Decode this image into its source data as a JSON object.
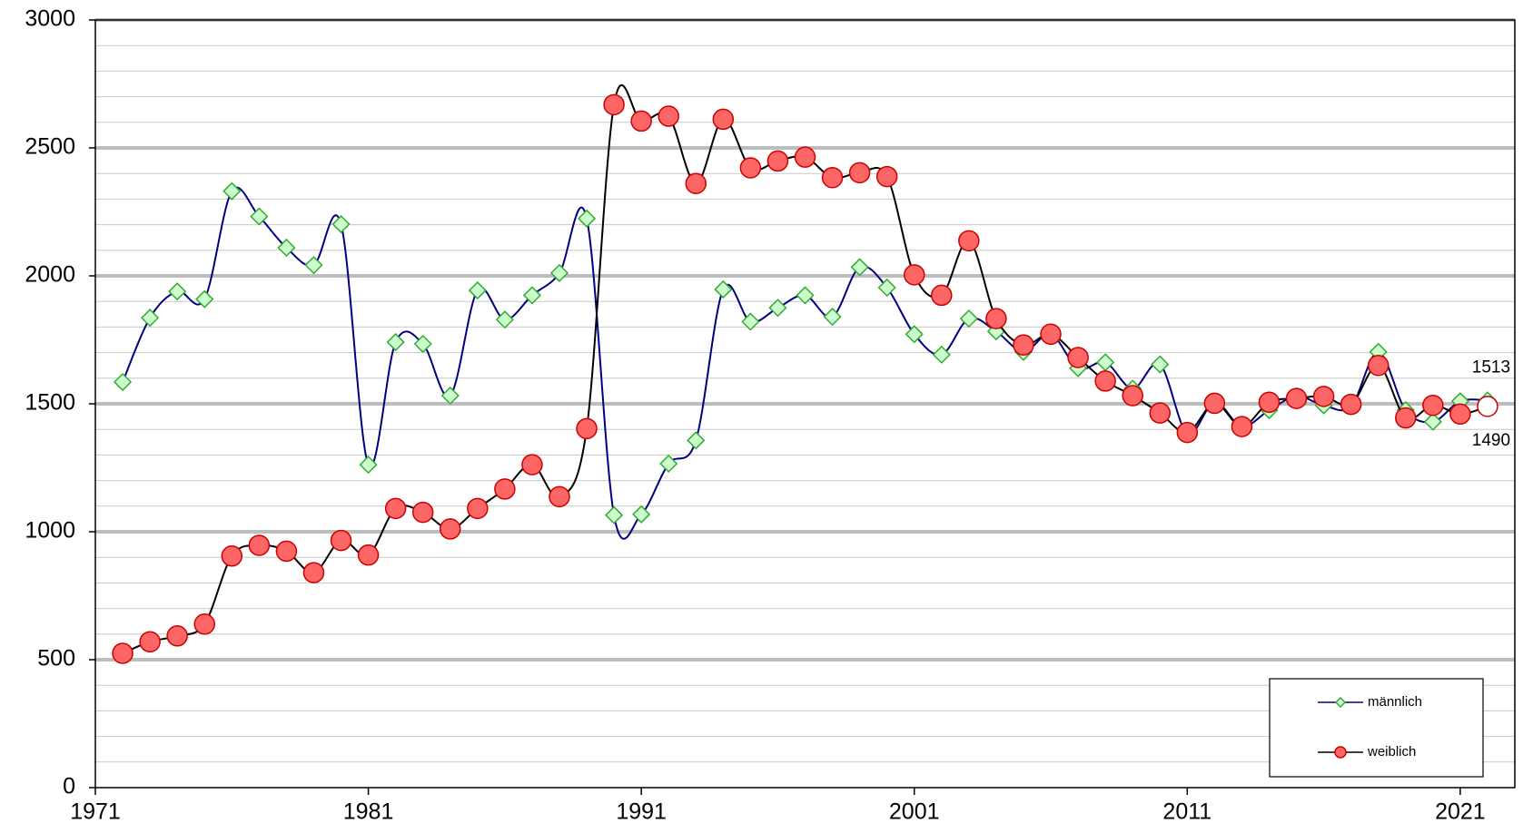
{
  "chart_data": {
    "type": "line",
    "x": [
      1972,
      1973,
      1974,
      1975,
      1976,
      1977,
      1978,
      1979,
      1980,
      1981,
      1982,
      1983,
      1984,
      1985,
      1986,
      1987,
      1988,
      1989,
      1990,
      1991,
      1992,
      1993,
      1994,
      1995,
      1996,
      1997,
      1998,
      1999,
      2000,
      2001,
      2002,
      2003,
      2004,
      2005,
      2006,
      2007,
      2008,
      2009,
      2010,
      2011,
      2012,
      2013,
      2014,
      2015,
      2016,
      2017,
      2018,
      2019,
      2020,
      2021,
      2022
    ],
    "series": [
      {
        "name": "männlich",
        "color": "#000080",
        "marker": "diamond",
        "marker_color": "#ccffcc",
        "marker_edge": "#33aa33",
        "values": [
          1585,
          1836,
          1939,
          1909,
          2331,
          2232,
          2110,
          2042,
          2202,
          1262,
          1741,
          1734,
          1532,
          1943,
          1829,
          1924,
          2011,
          2224,
          1065,
          1068,
          1266,
          1357,
          1947,
          1821,
          1875,
          1924,
          1840,
          2034,
          1954,
          1772,
          1692,
          1833,
          1783,
          1703,
          1772,
          1639,
          1662,
          1559,
          1654,
          1384,
          1506,
          1411,
          1475,
          1529,
          1494,
          1490,
          1703,
          1475,
          1430,
          1510,
          1513
        ]
      },
      {
        "name": "weiblich",
        "color": "#000000",
        "marker": "circle",
        "marker_color": "#ff6666",
        "marker_edge": "#cc0000",
        "values": [
          525,
          570,
          593,
          639,
          905,
          947,
          924,
          840,
          966,
          909,
          1091,
          1076,
          1011,
          1091,
          1167,
          1262,
          1137,
          1403,
          2669,
          2605,
          2624,
          2361,
          2612,
          2422,
          2449,
          2464,
          2384,
          2403,
          2388,
          2004,
          1924,
          2137,
          1833,
          1730,
          1772,
          1681,
          1589,
          1532,
          1464,
          1388,
          1502,
          1411,
          1506,
          1521,
          1529,
          1498,
          1650,
          1445,
          1494,
          1460,
          1490
        ]
      }
    ],
    "xlim": [
      1971,
      2023
    ],
    "xticks": [
      1971,
      1981,
      1991,
      2001,
      2011,
      2021
    ],
    "ylim": [
      0,
      3000
    ],
    "yticks": [
      0,
      500,
      1000,
      1500,
      2000,
      2500,
      3000
    ],
    "grid": true,
    "minor_grid": true,
    "legend": "lower right"
  }
}
